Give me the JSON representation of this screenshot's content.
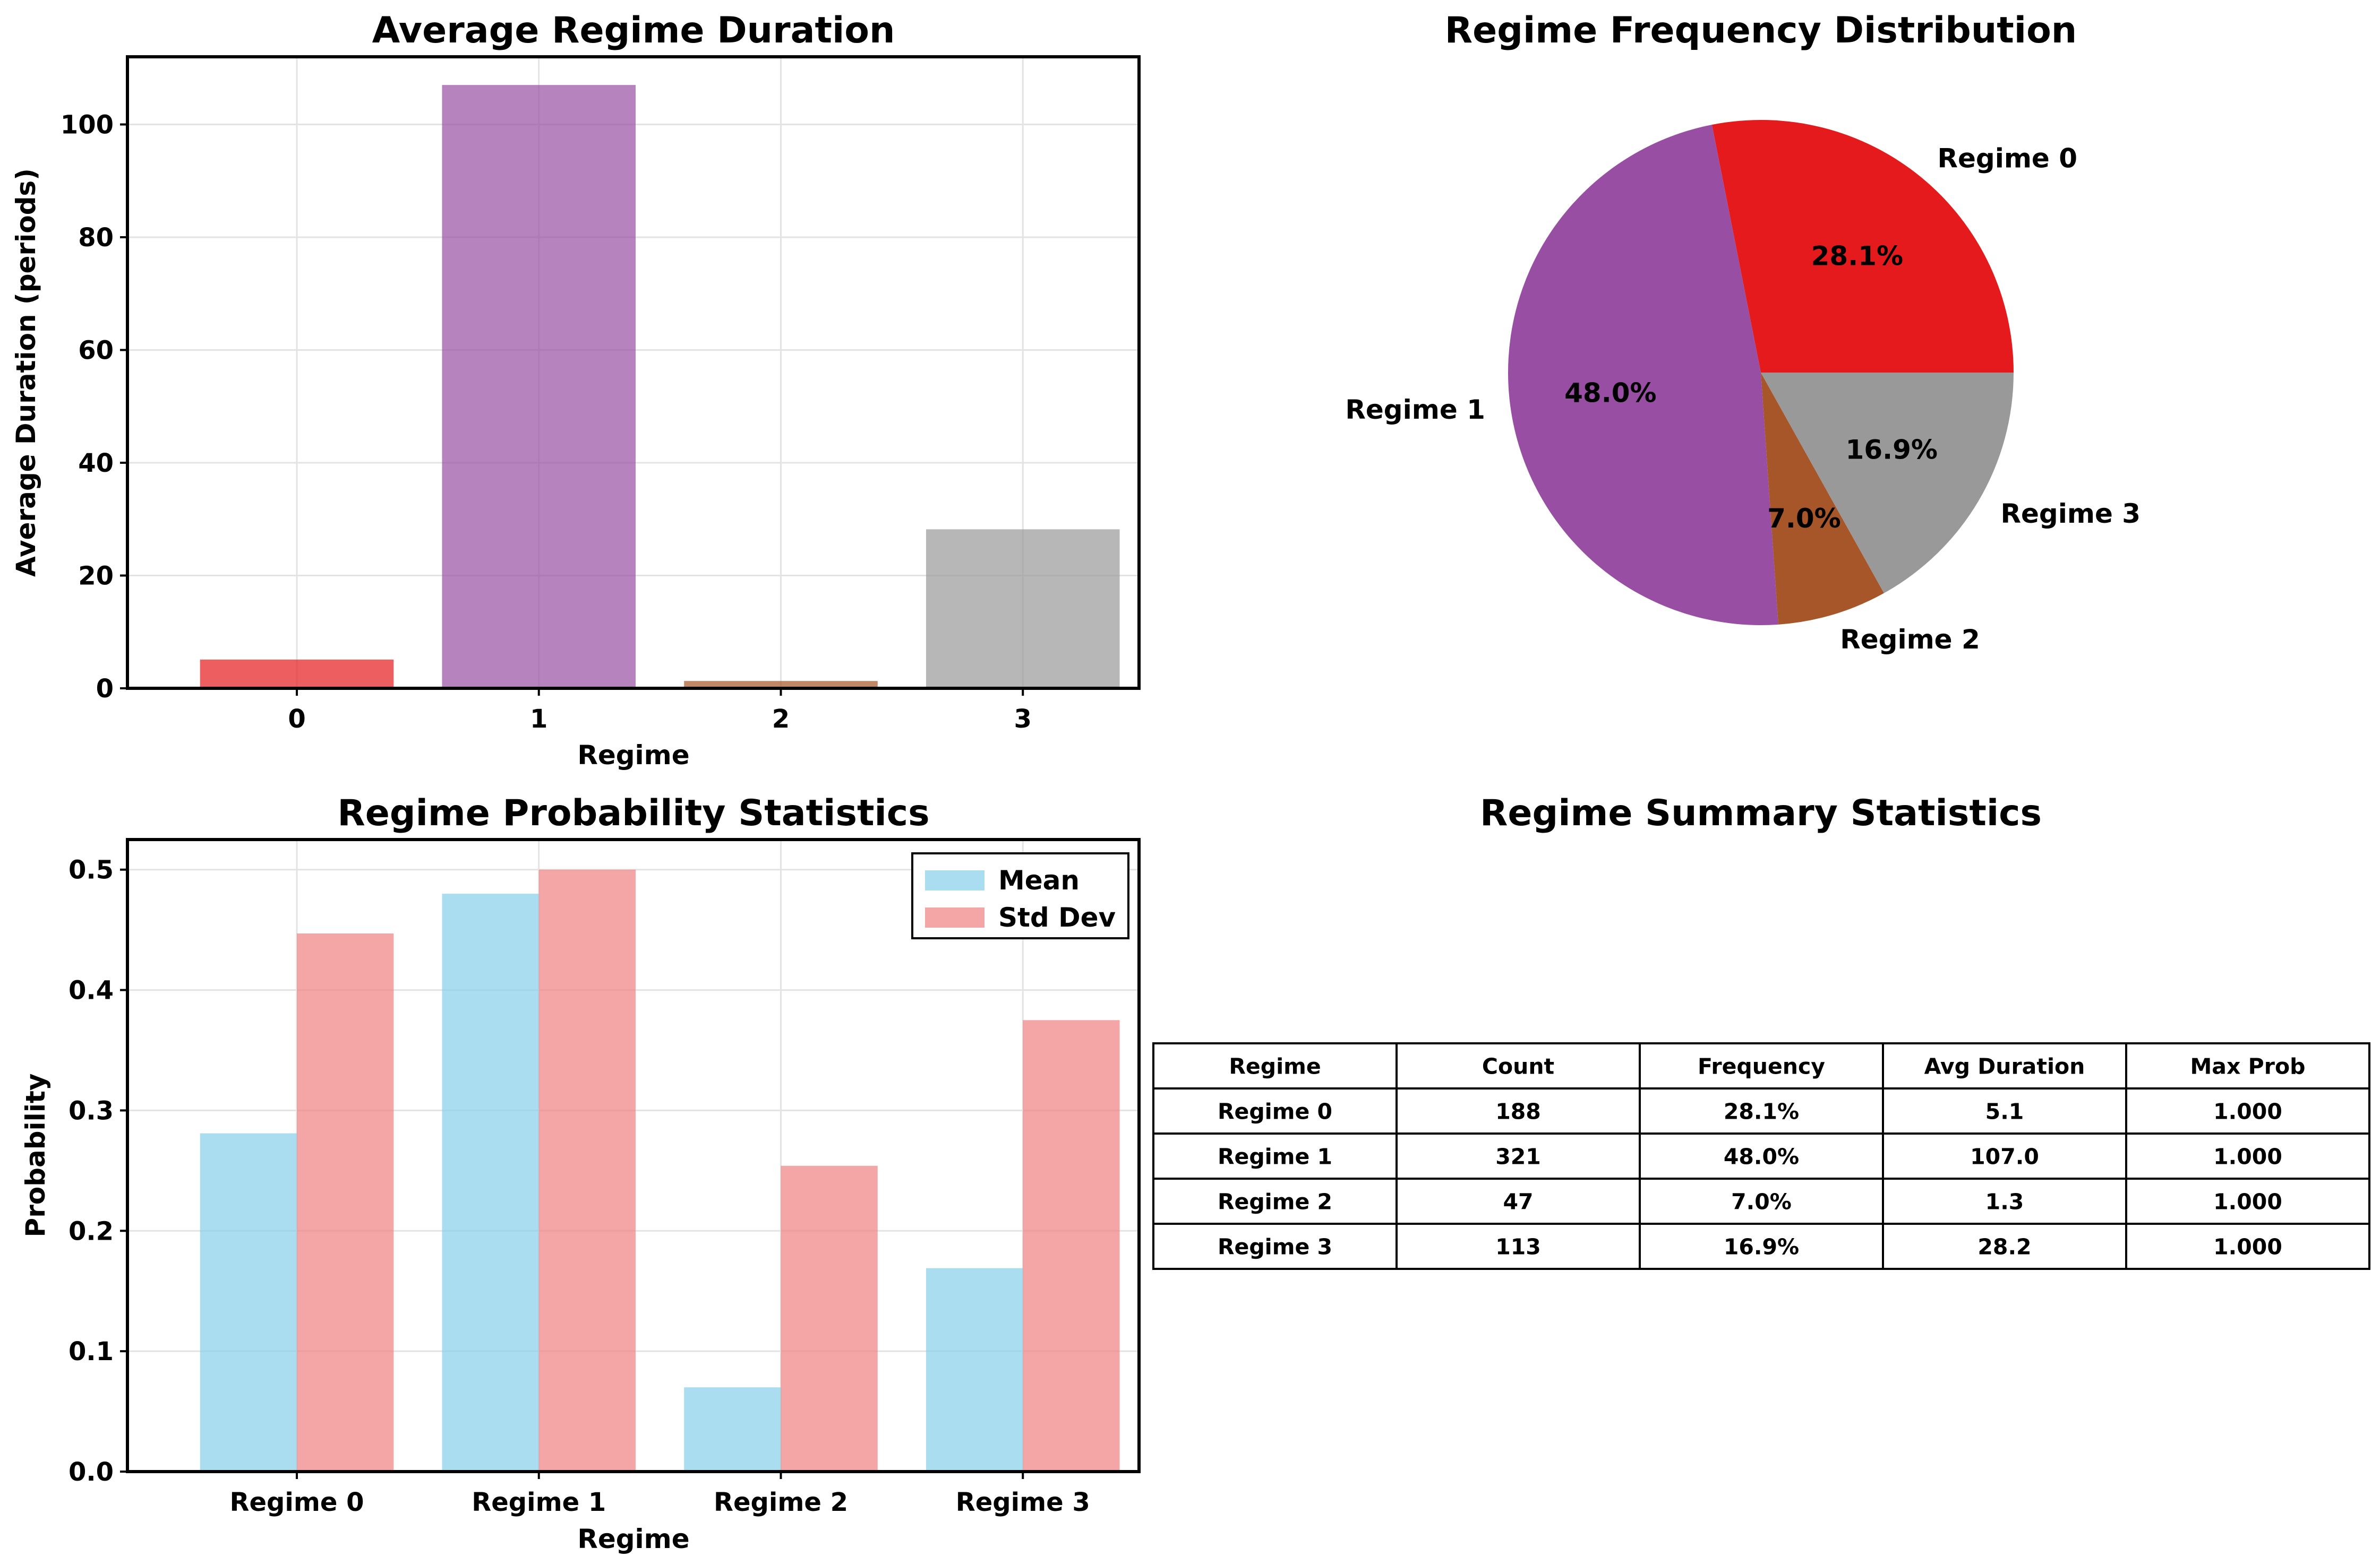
{
  "chart_data": [
    {
      "type": "bar",
      "title": "Average Regime Duration",
      "xlabel": "Regime",
      "ylabel": "Average Duration (periods)",
      "categories": [
        "0",
        "1",
        "2",
        "3"
      ],
      "values": [
        5.1,
        107.0,
        1.3,
        28.2
      ],
      "colors": [
        "#e41a1c",
        "#984ea3",
        "#a65628",
        "#999999"
      ],
      "ylim": [
        0,
        112
      ],
      "yticks": [
        0,
        20,
        40,
        60,
        80,
        100
      ],
      "grid": true
    },
    {
      "type": "pie",
      "title": "Regime Frequency Distribution",
      "labels": [
        "Regime 0",
        "Regime 1",
        "Regime 2",
        "Regime 3"
      ],
      "values": [
        28.1,
        48.0,
        7.0,
        16.9
      ],
      "pct_labels": [
        "28.1%",
        "48.0%",
        "7.0%",
        "16.9%"
      ],
      "colors": [
        "#e41a1c",
        "#984ea3",
        "#a65628",
        "#999999"
      ]
    },
    {
      "type": "bar",
      "title": "Regime Probability Statistics",
      "xlabel": "Regime",
      "ylabel": "Probability",
      "categories": [
        "Regime 0",
        "Regime 1",
        "Regime 2",
        "Regime 3"
      ],
      "series": [
        {
          "name": "Mean",
          "values": [
            0.281,
            0.48,
            0.07,
            0.169
          ],
          "color": "#87ceeb"
        },
        {
          "name": "Std Dev",
          "values": [
            0.447,
            0.5,
            0.254,
            0.375
          ],
          "color": "#f08080"
        }
      ],
      "ylim": [
        0,
        0.525
      ],
      "yticks": [
        "0.0",
        "0.1",
        "0.2",
        "0.3",
        "0.4",
        "0.5"
      ],
      "legend": "top-right",
      "grid": true
    },
    {
      "type": "table",
      "title": "Regime Summary Statistics",
      "columns": [
        "Regime",
        "Count",
        "Frequency",
        "Avg Duration",
        "Max Prob"
      ],
      "rows": [
        [
          "Regime 0",
          "188",
          "28.1%",
          "5.1",
          "1.000"
        ],
        [
          "Regime 1",
          "321",
          "48.0%",
          "107.0",
          "1.000"
        ],
        [
          "Regime 2",
          "47",
          "7.0%",
          "1.3",
          "1.000"
        ],
        [
          "Regime 3",
          "113",
          "16.9%",
          "28.2",
          "1.000"
        ]
      ]
    }
  ]
}
